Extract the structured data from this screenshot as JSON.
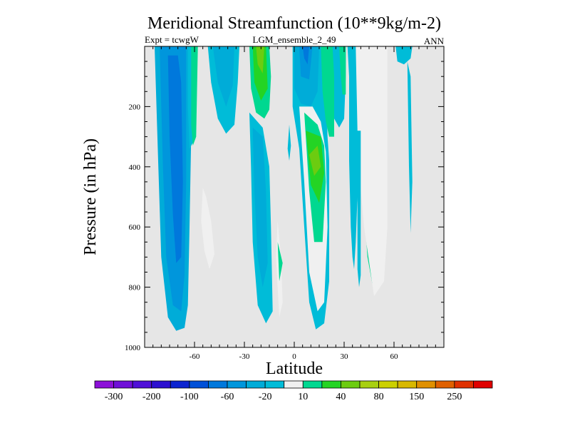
{
  "chart_data": {
    "type": "heatmap",
    "title": "Meridional Streamfunction (10**9kg/m-2)",
    "left_label": "Expt = tcwgW",
    "center_label": "LGM_ensemble_2_49",
    "right_label": "ANN",
    "xlabel": "Latitude",
    "ylabel": "Pressure (in hPa)",
    "xlim": [
      -90,
      90
    ],
    "ylim": [
      1000,
      0
    ],
    "x_ticks": [
      {
        "value": -60,
        "label": "-60"
      },
      {
        "value": -30,
        "label": "-30"
      },
      {
        "value": 0,
        "label": "0"
      },
      {
        "value": 30,
        "label": "30"
      },
      {
        "value": 60,
        "label": "60"
      }
    ],
    "y_ticks": [
      {
        "value": 200,
        "label": "200"
      },
      {
        "value": 400,
        "label": "400"
      },
      {
        "value": 600,
        "label": "600"
      },
      {
        "value": 800,
        "label": "800"
      },
      {
        "value": 1000,
        "label": "1000"
      }
    ],
    "background_color": "#e6e6e6",
    "colorbar": {
      "colors": [
        "#8c10d8",
        "#7010d8",
        "#5010d8",
        "#2c10d0",
        "#0c24d0",
        "#0050d8",
        "#0078dc",
        "#0096dc",
        "#00acd8",
        "#00bcd8",
        "#f0f0f0",
        "#00d890",
        "#24d424",
        "#6ccc10",
        "#a8d010",
        "#ccd000",
        "#d8b800",
        "#e09000",
        "#e06000",
        "#e03000",
        "#e00000"
      ],
      "labels": [
        "-300",
        "-200",
        "-100",
        "-60",
        "-20",
        "10",
        "40",
        "80",
        "150",
        "250"
      ]
    },
    "regions": [
      {
        "level": 8,
        "points": [
          [
            -84,
            0
          ],
          [
            -82,
            360
          ],
          [
            -80,
            700
          ],
          [
            -76,
            900
          ],
          [
            -71,
            945
          ],
          [
            -66,
            935
          ],
          [
            -64,
            860
          ],
          [
            -63,
            600
          ],
          [
            -62,
            300
          ],
          [
            -62,
            0
          ]
        ]
      },
      {
        "level": 7,
        "points": [
          [
            -81,
            0
          ],
          [
            -79,
            400
          ],
          [
            -77,
            700
          ],
          [
            -73,
            860
          ],
          [
            -68,
            880
          ],
          [
            -66,
            760
          ],
          [
            -65,
            450
          ],
          [
            -65,
            0
          ]
        ]
      },
      {
        "level": 6,
        "points": [
          [
            -76,
            30
          ],
          [
            -75,
            300
          ],
          [
            -73,
            560
          ],
          [
            -71,
            720
          ],
          [
            -68,
            700
          ],
          [
            -67,
            450
          ],
          [
            -68,
            120
          ],
          [
            -70,
            30
          ]
        ]
      },
      {
        "level": 9,
        "points": [
          [
            -64,
            0
          ],
          [
            -64,
            200
          ],
          [
            -63,
            340
          ],
          [
            -61,
            320
          ],
          [
            -61,
            150
          ],
          [
            -61,
            0
          ]
        ]
      },
      {
        "level": 11,
        "points": [
          [
            -62,
            0
          ],
          [
            -62,
            260
          ],
          [
            -61,
            330
          ],
          [
            -59,
            300
          ],
          [
            -58,
            0
          ]
        ]
      },
      {
        "level": 10,
        "points": [
          [
            -55,
            470
          ],
          [
            -56,
            580
          ],
          [
            -54,
            680
          ],
          [
            -51,
            740
          ],
          [
            -48,
            690
          ],
          [
            -50,
            580
          ],
          [
            -53,
            500
          ]
        ]
      },
      {
        "level": 9,
        "points": [
          [
            -52,
            0
          ],
          [
            -50,
            120
          ],
          [
            -46,
            240
          ],
          [
            -41,
            290
          ],
          [
            -36,
            260
          ],
          [
            -34,
            120
          ],
          [
            -33,
            0
          ]
        ]
      },
      {
        "level": 8,
        "points": [
          [
            -49,
            0
          ],
          [
            -46,
            120
          ],
          [
            -41,
            200
          ],
          [
            -37,
            130
          ],
          [
            -36,
            0
          ]
        ]
      },
      {
        "level": 9,
        "points": [
          [
            -27,
            220
          ],
          [
            -26,
            400
          ],
          [
            -25,
            650
          ],
          [
            -22,
            860
          ],
          [
            -17,
            920
          ],
          [
            -13,
            880
          ],
          [
            -14,
            600
          ],
          [
            -15,
            400
          ],
          [
            -19,
            270
          ]
        ]
      },
      {
        "level": 8,
        "points": [
          [
            -25,
            270
          ],
          [
            -24,
            480
          ],
          [
            -22,
            700
          ],
          [
            -19,
            800
          ],
          [
            -16,
            720
          ],
          [
            -17,
            480
          ],
          [
            -19,
            300
          ]
        ]
      },
      {
        "level": 11,
        "points": [
          [
            -27,
            0
          ],
          [
            -26,
            140
          ],
          [
            -23,
            220
          ],
          [
            -18,
            240
          ],
          [
            -15,
            210
          ],
          [
            -14,
            100
          ],
          [
            -15,
            0
          ]
        ]
      },
      {
        "level": 12,
        "points": [
          [
            -25,
            0
          ],
          [
            -24,
            120
          ],
          [
            -20,
            180
          ],
          [
            -16,
            140
          ],
          [
            -17,
            0
          ]
        ]
      },
      {
        "level": 13,
        "points": [
          [
            -23,
            0
          ],
          [
            -22,
            60
          ],
          [
            -19,
            90
          ],
          [
            -18,
            0
          ]
        ]
      },
      {
        "level": 10,
        "points": [
          [
            -10,
            580
          ],
          [
            -11,
            700
          ],
          [
            -9,
            900
          ],
          [
            -7,
            850
          ],
          [
            -8,
            700
          ]
        ]
      },
      {
        "level": 11,
        "points": [
          [
            -10,
            650
          ],
          [
            -9,
            780
          ],
          [
            -7,
            720
          ]
        ]
      },
      {
        "level": 9,
        "points": [
          [
            -3,
            260
          ],
          [
            -4,
            340
          ],
          [
            -3,
            380
          ],
          [
            -2,
            330
          ]
        ]
      },
      {
        "level": 9,
        "points": [
          [
            -1,
            0
          ],
          [
            -1,
            200
          ],
          [
            3,
            340
          ],
          [
            6,
            600
          ],
          [
            9,
            850
          ],
          [
            13,
            940
          ],
          [
            18,
            920
          ],
          [
            21,
            780
          ],
          [
            21,
            520
          ],
          [
            21,
            380
          ],
          [
            20,
            300
          ],
          [
            19,
            120
          ],
          [
            19,
            0
          ]
        ]
      },
      {
        "level": 8,
        "points": [
          [
            0,
            0
          ],
          [
            0,
            140
          ],
          [
            4,
            190
          ],
          [
            10,
            200
          ],
          [
            14,
            150
          ],
          [
            15,
            0
          ]
        ]
      },
      {
        "level": 7,
        "points": [
          [
            3,
            0
          ],
          [
            4,
            100
          ],
          [
            9,
            110
          ],
          [
            11,
            0
          ]
        ]
      },
      {
        "level": 6,
        "points": [
          [
            5,
            0
          ],
          [
            6,
            40
          ],
          [
            8,
            60
          ],
          [
            9,
            0
          ]
        ]
      },
      {
        "level": 10,
        "points": [
          [
            3,
            200
          ],
          [
            6,
            450
          ],
          [
            9,
            750
          ],
          [
            14,
            880
          ],
          [
            18,
            850
          ],
          [
            20,
            600
          ],
          [
            19,
            350
          ],
          [
            16,
            250
          ],
          [
            11,
            200
          ]
        ]
      },
      {
        "level": 11,
        "points": [
          [
            6,
            220
          ],
          [
            9,
            480
          ],
          [
            12,
            650
          ],
          [
            17,
            650
          ],
          [
            19,
            450
          ],
          [
            18,
            330
          ],
          [
            14,
            260
          ]
        ]
      },
      {
        "level": 12,
        "points": [
          [
            7,
            280
          ],
          [
            10,
            460
          ],
          [
            15,
            520
          ],
          [
            18,
            420
          ],
          [
            16,
            300
          ]
        ]
      },
      {
        "level": 13,
        "points": [
          [
            9,
            360
          ],
          [
            12,
            430
          ],
          [
            16,
            400
          ],
          [
            14,
            330
          ]
        ]
      },
      {
        "level": 11,
        "points": [
          [
            16,
            0
          ],
          [
            17,
            150
          ],
          [
            19,
            250
          ],
          [
            21,
            300
          ],
          [
            24,
            300
          ],
          [
            24,
            120
          ],
          [
            25,
            0
          ]
        ]
      },
      {
        "level": 9,
        "points": [
          [
            23,
            0
          ],
          [
            24,
            100
          ],
          [
            24,
            240
          ],
          [
            27,
            270
          ],
          [
            30,
            240
          ],
          [
            31,
            100
          ],
          [
            31,
            0
          ]
        ]
      },
      {
        "level": 11,
        "points": [
          [
            27,
            0
          ],
          [
            28,
            100
          ],
          [
            29,
            160
          ],
          [
            31,
            160
          ],
          [
            31,
            0
          ]
        ]
      },
      {
        "level": 11,
        "points": [
          [
            38,
            0
          ],
          [
            38,
            200
          ],
          [
            41,
            460
          ],
          [
            44,
            700
          ],
          [
            47,
            790
          ],
          [
            50,
            700
          ],
          [
            53,
            480
          ],
          [
            54,
            250
          ],
          [
            54,
            0
          ]
        ]
      },
      {
        "level": 10,
        "points": [
          [
            36,
            0
          ],
          [
            37,
            150
          ],
          [
            38,
            350
          ],
          [
            42,
            600
          ],
          [
            48,
            830
          ],
          [
            54,
            780
          ],
          [
            56,
            600
          ],
          [
            56,
            300
          ],
          [
            56,
            0
          ]
        ]
      },
      {
        "level": 9,
        "points": [
          [
            32,
            0
          ],
          [
            33,
            100
          ],
          [
            33,
            380
          ],
          [
            34,
            600
          ],
          [
            35,
            700
          ],
          [
            36,
            740
          ],
          [
            37,
            650
          ],
          [
            38,
            500
          ],
          [
            38,
            280
          ],
          [
            37,
            0
          ]
        ]
      },
      {
        "level": 9,
        "points": [
          [
            37,
            280
          ],
          [
            38,
            520
          ],
          [
            38,
            740
          ],
          [
            39,
            800
          ],
          [
            40,
            760
          ],
          [
            40,
            500
          ],
          [
            40,
            280
          ]
        ]
      },
      {
        "level": 9,
        "points": [
          [
            61,
            0
          ],
          [
            62,
            50
          ],
          [
            66,
            60
          ],
          [
            70,
            40
          ],
          [
            71,
            0
          ]
        ]
      },
      {
        "level": 9,
        "points": [
          [
            68,
            50
          ],
          [
            69,
            400
          ],
          [
            70,
            620
          ],
          [
            71,
            450
          ],
          [
            70,
            100
          ]
        ]
      }
    ]
  }
}
